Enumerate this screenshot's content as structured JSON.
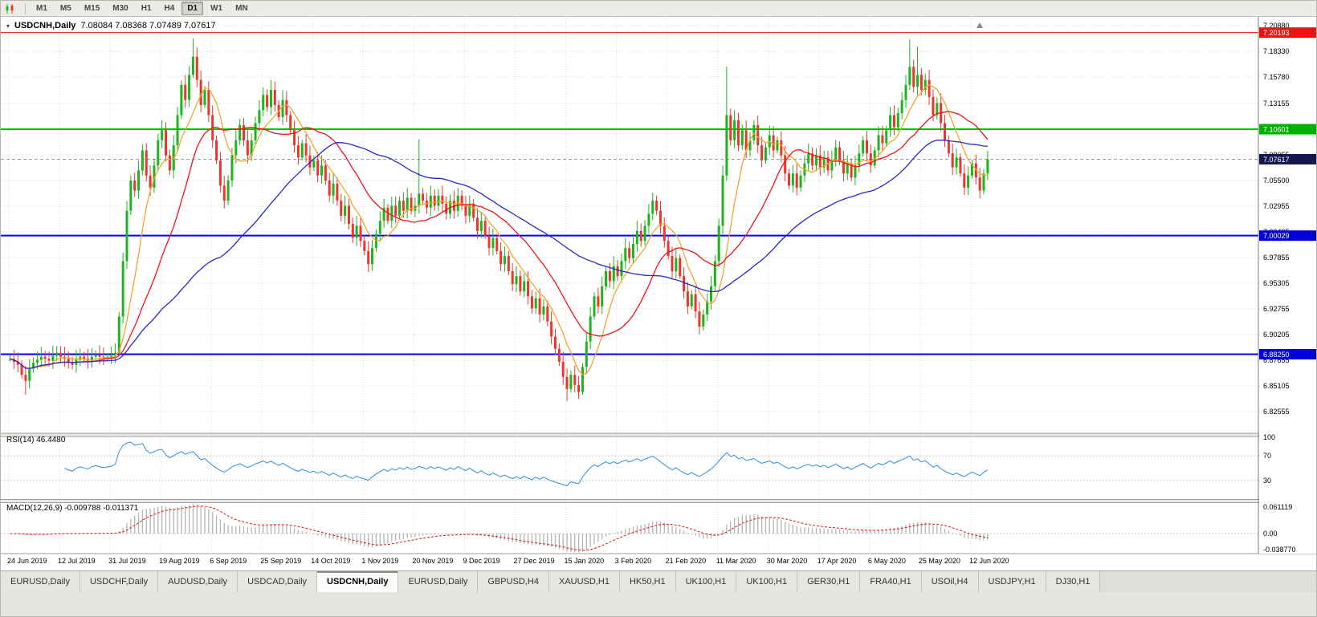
{
  "toolbar": {
    "timeframes": [
      "M1",
      "M5",
      "M15",
      "M30",
      "H1",
      "H4",
      "D1",
      "W1",
      "MN"
    ],
    "active_timeframe": "D1"
  },
  "chart": {
    "symbol_title": "USDCNH,Daily",
    "ohlc_text": "7.08084 7.08368 7.07489 7.07617",
    "rsi_label": "RSI(14) 46.4480",
    "macd_label": "MACD(12,26,9) -0.009788 -0.011371"
  },
  "chart_data": {
    "type": "candlestick",
    "symbol": "USDCNH",
    "period": "Daily",
    "ohlc_current": {
      "open": 7.08084,
      "high": 7.08368,
      "low": 7.07489,
      "close": 7.07617
    },
    "price_axis_labels": [
      "7.20880",
      "7.18330",
      "7.15780",
      "7.13155",
      "7.10605",
      "7.08055",
      "7.05500",
      "7.02955",
      "7.00405",
      "6.97855",
      "6.95305",
      "6.92755",
      "6.90205",
      "6.87655",
      "6.85105",
      "6.82555"
    ],
    "date_labels": [
      "24 Jun 2019",
      "12 Jul 2019",
      "31 Jul 2019",
      "19 Aug 2019",
      "6 Sep 2019",
      "25 Sep 2019",
      "14 Oct 2019",
      "1 Nov 2019",
      "20 Nov 2019",
      "9 Dec 2019",
      "27 Dec 2019",
      "15 Jan 2020",
      "3 Feb 2020",
      "21 Feb 2020",
      "11 Mar 2020",
      "30 Mar 2020",
      "17 Apr 2020",
      "6 May 2020",
      "25 May 2020",
      "12 Jun 2020"
    ],
    "closes": [
      6.878,
      6.875,
      6.872,
      6.862,
      6.856,
      6.868,
      6.874,
      6.877,
      6.88,
      6.878,
      6.876,
      6.881,
      6.884,
      6.88,
      6.878,
      6.874,
      6.872,
      6.877,
      6.88,
      6.878,
      6.876,
      6.88,
      6.882,
      6.88,
      6.879,
      6.88,
      6.881,
      6.884,
      6.92,
      6.975,
      7.025,
      7.055,
      7.045,
      7.065,
      7.085,
      7.06,
      7.048,
      7.07,
      7.095,
      7.105,
      7.08,
      7.065,
      7.09,
      7.12,
      7.15,
      7.135,
      7.16,
      7.178,
      7.155,
      7.13,
      7.145,
      7.12,
      7.095,
      7.075,
      7.05,
      7.035,
      7.055,
      7.08,
      7.095,
      7.11,
      7.095,
      7.08,
      7.095,
      7.112,
      7.125,
      7.14,
      7.128,
      7.145,
      7.13,
      7.118,
      7.135,
      7.12,
      7.105,
      7.09,
      7.078,
      7.092,
      7.08,
      7.068,
      7.075,
      7.06,
      7.07,
      7.055,
      7.04,
      7.052,
      7.035,
      7.02,
      7.03,
      7.012,
      6.998,
      7.01,
      6.995,
      6.985,
      6.972,
      6.988,
      7.002,
      7.015,
      7.028,
      7.015,
      7.03,
      7.02,
      7.035,
      7.025,
      7.038,
      7.025,
      7.03,
      7.042,
      7.035,
      7.028,
      7.04,
      7.03,
      7.04,
      7.032,
      7.022,
      7.035,
      7.025,
      7.04,
      7.03,
      7.02,
      7.032,
      7.018,
      7.005,
      7.015,
      7.0,
      6.988,
      6.998,
      6.985,
      6.972,
      6.98,
      6.965,
      6.952,
      6.96,
      6.945,
      6.955,
      6.94,
      6.928,
      6.938,
      6.922,
      6.93,
      6.915,
      6.9,
      6.888,
      6.875,
      6.86,
      6.848,
      6.862,
      6.852,
      6.845,
      6.87,
      6.895,
      6.92,
      6.94,
      6.93,
      6.95,
      6.965,
      6.955,
      6.97,
      6.96,
      6.975,
      6.988,
      6.978,
      6.992,
      7.005,
      6.995,
      7.01,
      7.022,
      7.035,
      7.025,
      7.01,
      6.995,
      6.98,
      6.965,
      6.978,
      6.96,
      6.945,
      6.93,
      6.942,
      6.925,
      6.91,
      6.922,
      6.935,
      6.95,
      6.975,
      7.01,
      7.06,
      7.12,
      7.095,
      7.115,
      7.09,
      7.105,
      7.085,
      7.095,
      7.11,
      7.09,
      7.075,
      7.088,
      7.1,
      7.085,
      7.095,
      7.08,
      7.062,
      7.05,
      7.062,
      7.048,
      7.06,
      7.072,
      7.082,
      7.07,
      7.08,
      7.068,
      7.078,
      7.065,
      7.075,
      7.088,
      7.075,
      7.062,
      7.072,
      7.058,
      7.07,
      7.082,
      7.095,
      7.082,
      7.07,
      7.085,
      7.1,
      7.092,
      7.105,
      7.12,
      7.108,
      7.122,
      7.135,
      7.15,
      7.168,
      7.148,
      7.16,
      7.145,
      7.155,
      7.138,
      7.12,
      7.132,
      7.112,
      7.095,
      7.082,
      7.068,
      7.078,
      7.062,
      7.048,
      7.06,
      7.072,
      7.058,
      7.045,
      7.062,
      7.076
    ],
    "wick_overrides": {
      "4": {
        "low": 6.842
      },
      "47": {
        "high": 7.196
      },
      "105": {
        "high": 7.096
      },
      "143": {
        "low": 6.836
      },
      "146": {
        "low": 6.838
      },
      "184": {
        "high": 7.168
      },
      "231": {
        "high": 7.195
      },
      "233": {
        "high": 7.188
      }
    },
    "horizontal_lines": [
      {
        "value": 7.20193,
        "label": "7.20193",
        "color": "#e81414",
        "label_bg": "#e81414",
        "width": 1
      },
      {
        "value": 7.10601,
        "label": "7.10601",
        "color": "#00c400",
        "label_bg": "#00b000",
        "width": 2
      },
      {
        "value": 7.00029,
        "label": "7.00029",
        "color": "#0000f0",
        "label_bg": "#0000d8",
        "width": 2
      },
      {
        "value": 6.8825,
        "label": "6.88250",
        "color": "#0000f0",
        "label_bg": "#0000d8",
        "width": 2
      }
    ],
    "current_price_line": {
      "value": 7.07617,
      "label": "7.07617",
      "line_color": "#9a9a9a",
      "label_bg": "#17174f"
    },
    "moving_averages": [
      {
        "period": 8,
        "color": "#f2a52c"
      },
      {
        "period": 20,
        "color": "#f01414"
      },
      {
        "period": 55,
        "color": "#2828c8"
      }
    ],
    "rsi": {
      "period": 14,
      "value": 46.448,
      "levels": [
        100,
        70,
        30
      ],
      "color": "#2f8fd4",
      "range": [
        0,
        100
      ]
    },
    "macd": {
      "fast": 12,
      "slow": 26,
      "signal": 9,
      "value": -0.009788,
      "signal_value": -0.011371,
      "axis_labels": [
        "0.061119",
        "0.00",
        "-0.038770"
      ],
      "range": [
        -0.0388,
        0.0612
      ],
      "histogram_color": "#b4b4b4",
      "signal_color": "#e01414"
    },
    "colors": {
      "up": "#1db41d",
      "down": "#e8382e",
      "grid": "#dadada",
      "bg": "#ffffff"
    }
  },
  "tabs": {
    "items": [
      "EURUSD,Daily",
      "USDCHF,Daily",
      "AUDUSD,Daily",
      "USDCAD,Daily",
      "USDCNH,Daily",
      "EURUSD,Daily",
      "GBPUSD,H4",
      "XAUUSD,H1",
      "HK50,H1",
      "UK100,H1",
      "UK100,H1",
      "GER30,H1",
      "FRA40,H1",
      "USOil,H4",
      "USDJPY,H1",
      "DJ30,H1"
    ],
    "active_index": 4
  }
}
